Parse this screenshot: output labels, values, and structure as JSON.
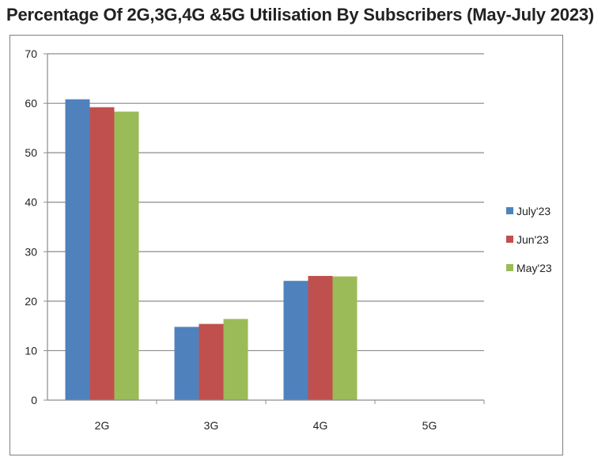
{
  "chart_data": {
    "type": "bar",
    "title": "Percentage Of 2G,3G,4G &5G Utilisation By Subscribers (May-July 2023)",
    "xlabel": "",
    "ylabel": "",
    "ylim": [
      0,
      70
    ],
    "yticks": [
      0,
      10,
      20,
      30,
      40,
      50,
      60,
      70
    ],
    "grid": true,
    "legend_position": "right",
    "categories": [
      "2G",
      "3G",
      "4G",
      "5G"
    ],
    "series": [
      {
        "name": "July'23",
        "color": "#4F81BD",
        "values": [
          60.8,
          14.8,
          24.1,
          0
        ]
      },
      {
        "name": "Jun'23",
        "color": "#C0504D",
        "values": [
          59.2,
          15.4,
          25.1,
          0
        ]
      },
      {
        "name": "May'23",
        "color": "#9BBB59",
        "values": [
          58.3,
          16.4,
          25.0,
          0
        ]
      }
    ]
  }
}
